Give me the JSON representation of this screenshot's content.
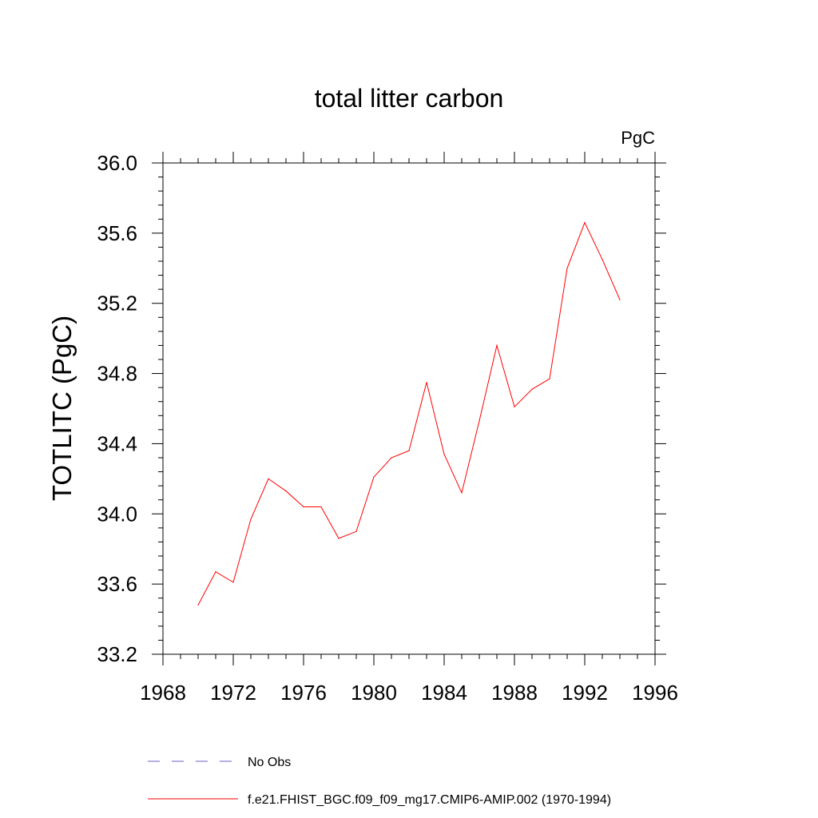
{
  "chart_data": {
    "type": "line",
    "title": "total litter carbon",
    "units": "PgC",
    "ylabel": "TOTLITC  (PgC)",
    "xlabel": "",
    "xlim": [
      1968,
      1996
    ],
    "ylim": [
      33.2,
      36.0
    ],
    "x_ticks": [
      "1968",
      "1972",
      "1976",
      "1980",
      "1984",
      "1988",
      "1992",
      "1996"
    ],
    "y_ticks": [
      "33.2",
      "33.6",
      "34.0",
      "34.4",
      "34.8",
      "35.2",
      "35.6",
      "36.0"
    ],
    "grid": false,
    "legend_position": "bottom",
    "series": [
      {
        "name": "No Obs",
        "color": "#6b5fc7",
        "style": "dashed",
        "x": [],
        "y": []
      },
      {
        "name": "f.e21.FHIST_BGC.f09_f09_mg17.CMIP6-AMIP.002 (1970-1994)",
        "color": "#ff0000",
        "style": "solid",
        "x": [
          1970,
          1971,
          1972,
          1973,
          1974,
          1975,
          1976,
          1977,
          1978,
          1979,
          1980,
          1981,
          1982,
          1983,
          1984,
          1985,
          1986,
          1987,
          1988,
          1989,
          1990,
          1991,
          1992,
          1993,
          1994
        ],
        "y": [
          33.48,
          33.67,
          33.61,
          33.97,
          34.2,
          34.13,
          34.04,
          34.04,
          33.86,
          33.9,
          34.21,
          34.32,
          34.36,
          34.75,
          34.34,
          34.12,
          34.53,
          34.96,
          34.61,
          34.71,
          34.77,
          35.4,
          35.66,
          35.45,
          35.22
        ]
      }
    ]
  }
}
